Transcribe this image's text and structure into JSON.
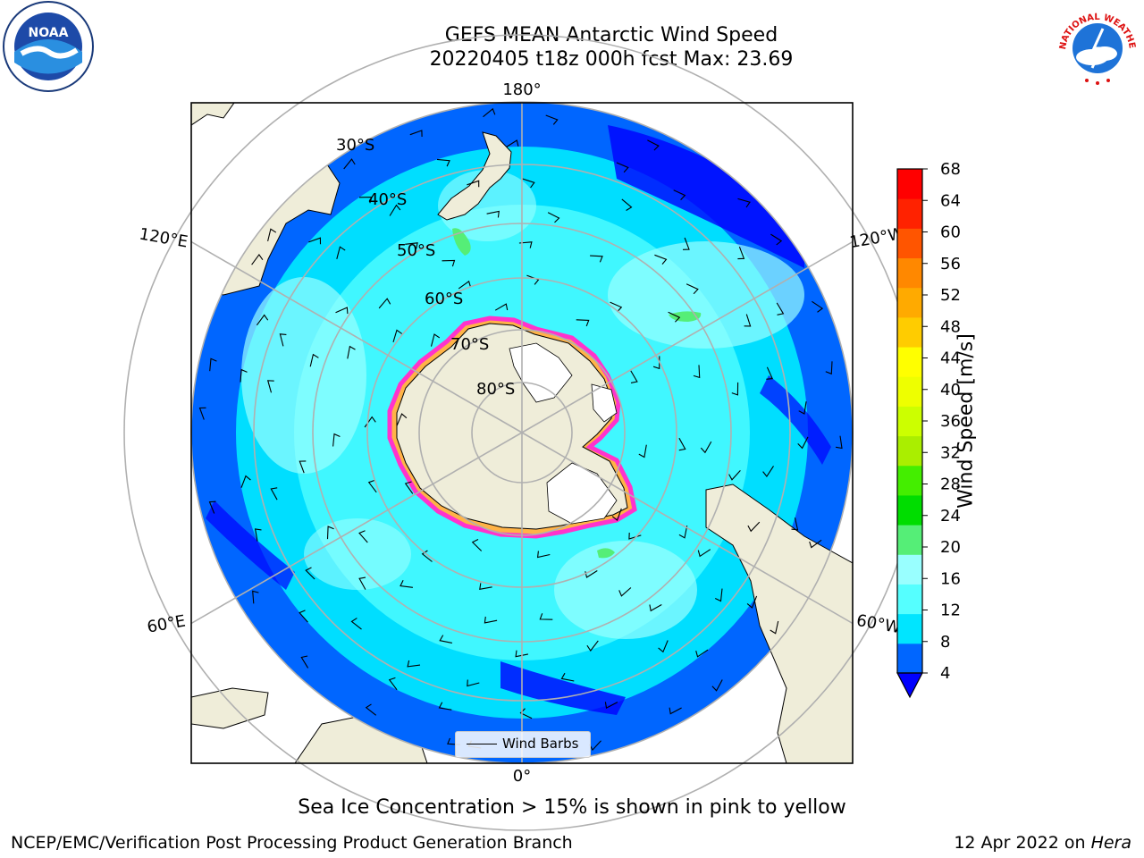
{
  "header": {
    "title_line1": "GEFS MEAN Antarctic Wind Speed",
    "title_line2": "20220405 t18z 000h fcst   Max: 23.69"
  },
  "logos": {
    "left": {
      "text": "NOAA",
      "icon": "noaa-logo-icon"
    },
    "right": {
      "text": "NATIONAL WEATHER SERVICE",
      "icon": "nws-logo-icon"
    }
  },
  "map": {
    "longitude_labels": {
      "top": "180°",
      "bottom": "0°",
      "upper_left": "120°E",
      "upper_right": "120°W",
      "lower_left": "60°E",
      "lower_right": "60°W"
    },
    "latitude_labels": [
      "30°S",
      "40°S",
      "50°S",
      "60°S",
      "70°S",
      "80°S"
    ],
    "colors": {
      "ocean_low": "#0000ff",
      "ocean_4_8": "#0066ff",
      "ocean_8_12": "#00e5ff",
      "ocean_12_16": "#55ffff",
      "ocean_16_20": "#99ffff",
      "wind_20_24": "#55ee77",
      "land": "#efedd9",
      "ice_edge": "#ff33cc",
      "ice_inner": "#ffb347",
      "grid": "#b0b0b0"
    },
    "legend_label": "Wind Barbs"
  },
  "colorbar": {
    "title": "Wind Speed [m/s]",
    "ticks": [
      "68",
      "64",
      "60",
      "56",
      "52",
      "48",
      "44",
      "40",
      "36",
      "32",
      "28",
      "24",
      "20",
      "16",
      "12",
      "8",
      "4"
    ],
    "colors": [
      "#0066ff",
      "#00e5ff",
      "#55ffff",
      "#99ffff",
      "#55ee77",
      "#00dd00",
      "#44ee00",
      "#aaee00",
      "#ccff00",
      "#eeff00",
      "#ffff00",
      "#ffcc00",
      "#ffaa00",
      "#ff8800",
      "#ff5500",
      "#ff2200",
      "#ff0000"
    ],
    "under_color": "#0000ff"
  },
  "footer": {
    "subtitle": "Sea Ice Concentration > 15% is shown in pink to yellow",
    "left_credit": "NCEP/EMC/Verification Post Processing Product Generation Branch",
    "right_credit_date": "12 Apr 2022 on ",
    "right_credit_host": "Hera"
  }
}
